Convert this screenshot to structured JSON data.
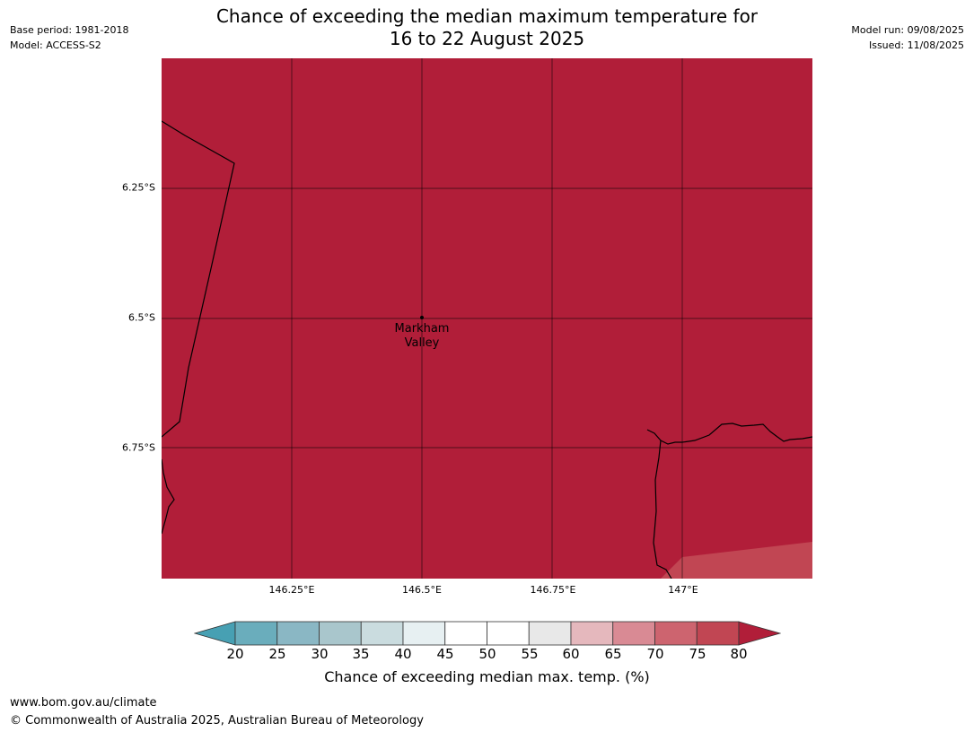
{
  "header": {
    "base_period": "Base period: 1981-2018",
    "model": "Model: ACCESS-S2",
    "model_run": "Model run: 09/08/2025",
    "issued": "Issued: 11/08/2025",
    "title_line1": "Chance of exceeding the median maximum temperature for",
    "title_line2": "16 to 22 August 2025"
  },
  "map": {
    "latitude_labels": [
      "6.25°S",
      "6.5°S",
      "6.75°S"
    ],
    "longitude_labels": [
      "146.25°E",
      "146.5°E",
      "146.75°E",
      "147°E"
    ],
    "place": {
      "line1": "Markham",
      "line2": "Valley"
    },
    "dominant_category": "≥80",
    "dominant_color": "#b11e39",
    "secondary_category": "75-80",
    "secondary_color": "#c14653"
  },
  "colorbar": {
    "ticks": [
      "20",
      "25",
      "30",
      "35",
      "40",
      "45",
      "50",
      "55",
      "60",
      "65",
      "70",
      "75",
      "80"
    ],
    "colors": [
      "#47a0b3",
      "#6aadbc",
      "#8ab7c4",
      "#a9c6cc",
      "#cadcdf",
      "#e7f0f2",
      "#ffffff",
      "#ffffff",
      "#e8e8e8",
      "#e5b8bd",
      "#d98a94",
      "#cd646f",
      "#c14653",
      "#b11e39"
    ],
    "label": "Chance of exceeding median max. temp. (%)"
  },
  "footer": {
    "url": "www.bom.gov.au/climate",
    "copyright": "© Commonwealth of Australia 2025, Australian Bureau of Meteorology"
  }
}
